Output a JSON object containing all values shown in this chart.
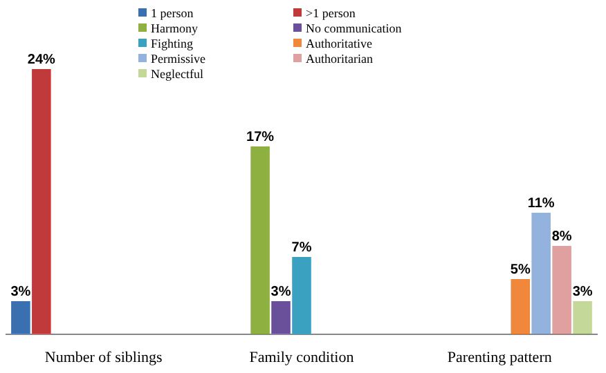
{
  "chart_data": {
    "type": "bar",
    "categories": [
      "Number of siblings",
      "Family condition",
      "Parenting pattern"
    ],
    "relative": false,
    "legend": "top",
    "series": [
      {
        "name": "1 person",
        "color": "#3a6fb0",
        "values": [
          3,
          null,
          null
        ],
        "value_labels": [
          "3%",
          null,
          null
        ]
      },
      {
        "name": ">1 person",
        "color": "#c0393b",
        "values": [
          24,
          null,
          null
        ],
        "value_labels": [
          "24%",
          null,
          null
        ]
      },
      {
        "name": "Harmony",
        "color": "#8db040",
        "values": [
          null,
          17,
          null
        ],
        "value_labels": [
          null,
          "17%",
          null
        ]
      },
      {
        "name": "No communication",
        "color": "#6a4f9a",
        "values": [
          null,
          3,
          null
        ],
        "value_labels": [
          null,
          "3%",
          null
        ]
      },
      {
        "name": "Fighting",
        "color": "#3aa2c0",
        "values": [
          null,
          7,
          null
        ],
        "value_labels": [
          null,
          "7%",
          null
        ]
      },
      {
        "name": "Authoritative",
        "color": "#f0873a",
        "values": [
          null,
          null,
          5
        ],
        "value_labels": [
          null,
          null,
          "5%"
        ]
      },
      {
        "name": "Permissive",
        "color": "#93b3de",
        "values": [
          null,
          null,
          11
        ],
        "value_labels": [
          null,
          null,
          "11%"
        ]
      },
      {
        "name": "Authoritarian",
        "color": "#e0a0a0",
        "values": [
          null,
          null,
          8
        ],
        "value_labels": [
          null,
          null,
          "8%"
        ]
      },
      {
        "name": "Neglectful",
        "color": "#c4d89a",
        "values": [
          null,
          null,
          3
        ],
        "value_labels": [
          null,
          null,
          "3%"
        ]
      }
    ]
  }
}
